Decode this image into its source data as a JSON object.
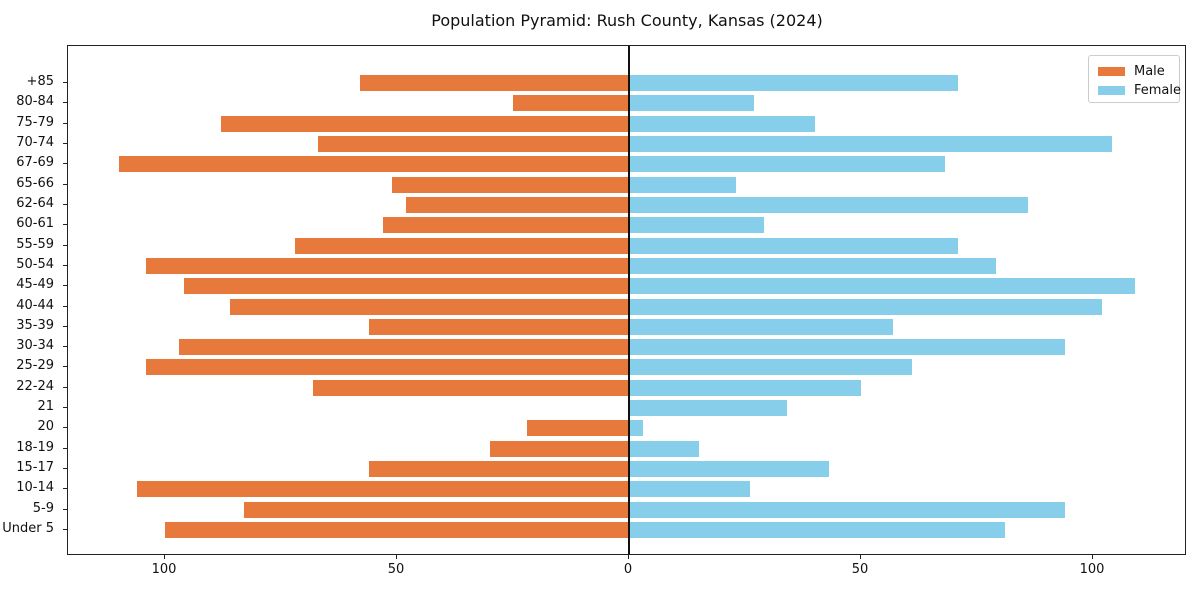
{
  "title": "Population Pyramid: Rush County, Kansas (2024)",
  "legend": {
    "male_label": "Male",
    "female_label": "Female"
  },
  "colors": {
    "male": "#e8793c",
    "female": "#87ceeb",
    "axis": "#222222",
    "zero_line": "#111111",
    "background": "#ffffff"
  },
  "chart_data": {
    "type": "bar",
    "subtype": "population-pyramid",
    "orientation": "horizontal",
    "title": "Population Pyramid: Rush County, Kansas (2024)",
    "xlabel": "",
    "ylabel": "",
    "grid": false,
    "legend_position": "upper right",
    "categories": [
      "Under 5",
      "5-9",
      "10-14",
      "15-17",
      "18-19",
      "20",
      "21",
      "22-24",
      "25-29",
      "30-34",
      "35-39",
      "40-44",
      "45-49",
      "50-54",
      "55-59",
      "60-61",
      "62-64",
      "65-66",
      "67-69",
      "70-74",
      "75-79",
      "80-84",
      "85+"
    ],
    "series": [
      {
        "name": "Male",
        "side": "left",
        "color": "#e8793c",
        "values": [
          100,
          83,
          106,
          56,
          30,
          22,
          0,
          68,
          104,
          97,
          56,
          86,
          96,
          104,
          72,
          53,
          48,
          51,
          110,
          67,
          88,
          25,
          58
        ]
      },
      {
        "name": "Female",
        "side": "right",
        "color": "#87ceeb",
        "values": [
          81,
          94,
          26,
          43,
          15,
          3,
          34,
          50,
          61,
          94,
          57,
          102,
          109,
          79,
          71,
          29,
          86,
          23,
          68,
          104,
          40,
          27,
          71
        ]
      }
    ],
    "xticks_labels": [
      "100",
      "50",
      "0",
      "50",
      "100"
    ],
    "xticks_values": [
      -100,
      -50,
      0,
      50,
      100
    ],
    "xlim": [
      -121,
      121
    ]
  }
}
